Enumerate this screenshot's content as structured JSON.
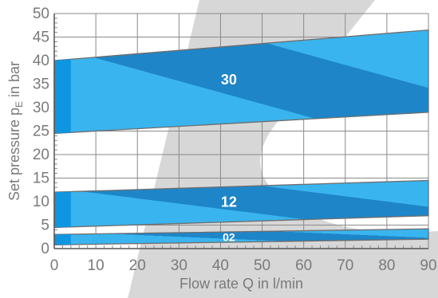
{
  "chart_data": {
    "type": "area",
    "xlabel": "Flow rate Q in l/min",
    "ylabel_main": "Set pressure p",
    "ylabel_sub": "E",
    "ylabel_tail": " in bar",
    "xlim": [
      0,
      90
    ],
    "ylim": [
      0,
      50
    ],
    "xticks": [
      0,
      10,
      20,
      30,
      40,
      50,
      60,
      70,
      80,
      90
    ],
    "yticks": [
      0,
      5,
      10,
      15,
      20,
      25,
      30,
      35,
      40,
      45,
      50
    ],
    "grid": true,
    "colors": {
      "band_dark": "#1e86c8",
      "band_light": "#3ab4ee",
      "band_edge": "#0f96e0",
      "outline": "#6e6e6e",
      "grid": "#8a8a8a",
      "watermark": "#d0d0d0"
    },
    "bands": [
      {
        "label": "30",
        "x": [
          0,
          90
        ],
        "upper": [
          40,
          46.5
        ],
        "lower": [
          24.5,
          29
        ],
        "label_pos": [
          42,
          36
        ]
      },
      {
        "label": "12",
        "x": [
          0,
          90
        ],
        "upper": [
          12,
          14.5
        ],
        "lower": [
          4.5,
          7
        ],
        "label_pos": [
          42,
          10
        ]
      },
      {
        "label": "02",
        "x": [
          0,
          90
        ],
        "upper": [
          3,
          4.2
        ],
        "lower": [
          0.8,
          2
        ],
        "label_pos": [
          42,
          2.4
        ]
      }
    ]
  }
}
